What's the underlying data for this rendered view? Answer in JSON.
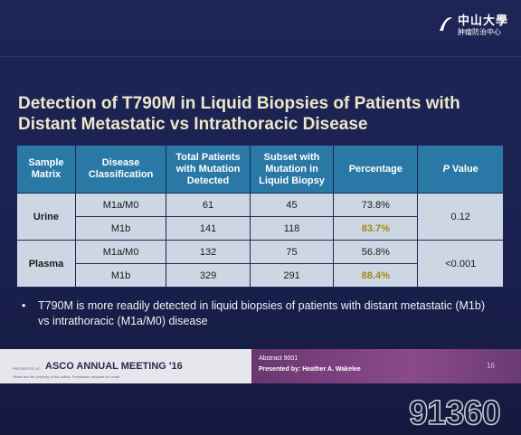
{
  "header": {
    "logo_title": "中山大學",
    "logo_subtitle": "肿瘤防治中心"
  },
  "title": {
    "line1": "Detection of T790M in Liquid Biopsies of Patients with",
    "line2": "Distant Metastatic vs Intrathoracic Disease"
  },
  "table": {
    "columns": [
      "Sample Matrix",
      "Disease Classification",
      "Total Patients with Mutation Detected",
      "Subset with Mutation in Liquid Biopsy",
      "Percentage",
      "P Value"
    ],
    "groups": [
      {
        "matrix": "Urine",
        "p_value": "0.12",
        "rows": [
          {
            "cells": [
              "M1a/M0",
              "61",
              "45",
              "73.8%"
            ],
            "highlight": false
          },
          {
            "cells": [
              "M1b",
              "141",
              "118",
              "83.7%"
            ],
            "highlight": true
          }
        ]
      },
      {
        "matrix": "Plasma",
        "p_value": "<0.001",
        "rows": [
          {
            "cells": [
              "M1a/M0",
              "132",
              "75",
              "56.8%"
            ],
            "highlight": false
          },
          {
            "cells": [
              "M1b",
              "329",
              "291",
              "88.4%"
            ],
            "highlight": true
          }
        ]
      }
    ]
  },
  "bullet": "T790M is more readily detected in liquid biopsies of patients with distant metastatic (M1b) vs intrathoracic (M1a/M0) disease",
  "footer": {
    "presented_at": "PRESENTED AT:",
    "meeting": "ASCO ANNUAL MEETING '16",
    "disclaimer": "Slides are the property of the author. Permission required for reuse.",
    "abstract": "Abstract 9001",
    "presenter": "Presented by: Heather A. Wakelee",
    "page": "16"
  },
  "watermark": "91360"
}
